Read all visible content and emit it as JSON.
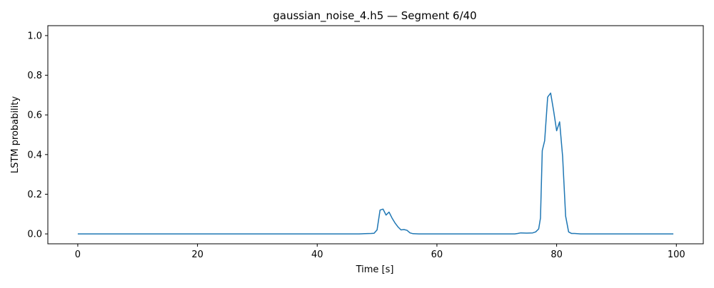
{
  "chart_data": {
    "type": "line",
    "title": "gaussian_noise_4.h5 — Segment 6/40",
    "xlabel": "Time [s]",
    "ylabel": "LSTM probability",
    "xlim": [
      -5,
      104.5
    ],
    "ylim": [
      -0.05,
      1.05
    ],
    "xticks": [
      0,
      20,
      40,
      60,
      80,
      100
    ],
    "yticks": [
      0.0,
      0.2,
      0.4,
      0.6,
      0.8,
      1.0
    ],
    "xtick_labels": [
      "0",
      "20",
      "40",
      "60",
      "80",
      "100"
    ],
    "ytick_labels": [
      "0.0",
      "0.2",
      "0.4",
      "0.6",
      "0.8",
      "1.0"
    ],
    "grid": false,
    "line_color": "#1f77b4",
    "series": [
      {
        "x": [
          0,
          10,
          20,
          30,
          40,
          47,
          48,
          49,
          49.5,
          50,
          50.5,
          51,
          51.5,
          52,
          52.5,
          53,
          53.5,
          54,
          54.5,
          55,
          55.5,
          56,
          57,
          60,
          65,
          70,
          73,
          73.5,
          74,
          75,
          76,
          76.5,
          77,
          77.3,
          77.6,
          78,
          78.5,
          79,
          79.5,
          80,
          80.5,
          81,
          81.5,
          82,
          82.5,
          83,
          84,
          90,
          95,
          99.5
        ],
        "y": [
          0.0,
          0.0,
          0.0,
          0.0,
          0.0,
          0.0,
          0.001,
          0.002,
          0.003,
          0.02,
          0.12,
          0.125,
          0.095,
          0.11,
          0.08,
          0.055,
          0.035,
          0.02,
          0.022,
          0.018,
          0.005,
          0.001,
          0.0,
          0.0,
          0.0,
          0.0,
          0.0,
          0.002,
          0.005,
          0.004,
          0.005,
          0.01,
          0.025,
          0.08,
          0.42,
          0.47,
          0.69,
          0.71,
          0.62,
          0.52,
          0.565,
          0.39,
          0.09,
          0.01,
          0.002,
          0.002,
          0.0,
          0.0,
          0.0,
          0.0
        ]
      }
    ]
  }
}
